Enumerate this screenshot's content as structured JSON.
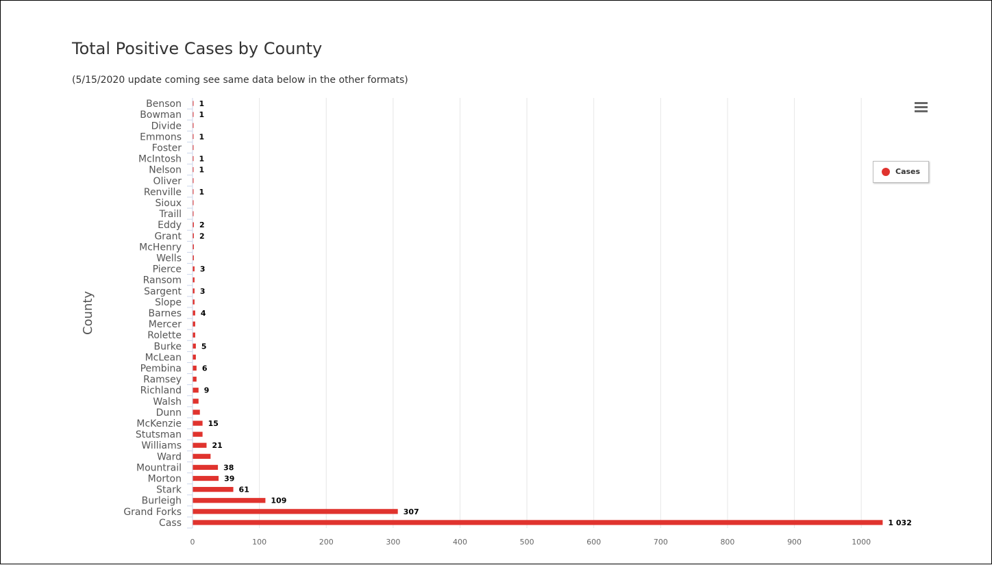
{
  "chart_data": {
    "type": "bar",
    "orientation": "horizontal",
    "title": "Total Positive Cases by County",
    "subtitle": "(5/15/2020 update coming see same data below in the other formats)",
    "ylabel": "County",
    "xlim": [
      0,
      1050
    ],
    "x_ticks": [
      0,
      100,
      200,
      300,
      400,
      500,
      600,
      700,
      800,
      900,
      1000
    ],
    "x_tick_labels": [
      "0",
      "100",
      "200",
      "300",
      "400",
      "500",
      "600",
      "700",
      "800",
      "900",
      "1000"
    ],
    "grid": "vertical",
    "legend": "right",
    "bar_color": "#e0332e",
    "categories": [
      "Benson",
      "Bowman",
      "Divide",
      "Emmons",
      "Foster",
      "McIntosh",
      "Nelson",
      "Oliver",
      "Renville",
      "Sioux",
      "Traill",
      "Eddy",
      "Grant",
      "McHenry",
      "Wells",
      "Pierce",
      "Ransom",
      "Sargent",
      "Slope",
      "Barnes",
      "Mercer",
      "Rolette",
      "Burke",
      "McLean",
      "Pembina",
      "Ramsey",
      "Richland",
      "Walsh",
      "Dunn",
      "McKenzie",
      "Stutsman",
      "Williams",
      "Ward",
      "Mountrail",
      "Morton",
      "Stark",
      "Burleigh",
      "Grand Forks",
      "Cass"
    ],
    "series": [
      {
        "name": "Cases",
        "values": [
          1,
          1,
          1,
          1,
          1,
          1,
          1,
          1,
          1,
          1,
          1,
          2,
          2,
          2,
          2,
          3,
          3,
          3,
          3,
          4,
          4,
          4,
          5,
          5,
          6,
          6,
          9,
          9,
          11,
          15,
          15,
          21,
          27,
          38,
          39,
          61,
          109,
          307,
          1032
        ],
        "labels": [
          "1",
          "1",
          "",
          "1",
          "",
          "1",
          "1",
          "",
          "1",
          "",
          "",
          "2",
          "2",
          "",
          "",
          "3",
          "",
          "3",
          "",
          "4",
          "",
          "",
          "5",
          "",
          "6",
          "",
          "9",
          "",
          "",
          "15",
          "",
          "21",
          "",
          "38",
          "39",
          "61",
          "109",
          "307",
          "1 032"
        ]
      }
    ]
  },
  "legend": {
    "label": "Cases",
    "color": "#e0332e"
  },
  "menu": {
    "icon": "hamburger-menu-icon"
  }
}
